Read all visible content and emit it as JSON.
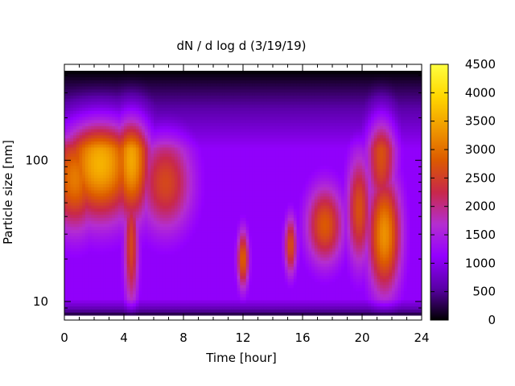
{
  "chart_data": {
    "type": "heatmap",
    "title": "dN / d log d (3/19/19)",
    "xlabel": "Time [hour]",
    "ylabel": "Particle size [nm]",
    "xlim": [
      0,
      24
    ],
    "x_ticks": [
      0,
      4,
      8,
      12,
      16,
      20,
      24
    ],
    "y_scale": "log",
    "ylim": [
      8,
      430
    ],
    "y_ticks": [
      10,
      100
    ],
    "colorbar": {
      "range": [
        0,
        4500
      ],
      "ticks": [
        0,
        500,
        1000,
        1500,
        2000,
        2500,
        3000,
        3500,
        4000,
        4500
      ],
      "palette": [
        "#000000",
        "#5a00a8",
        "#9400ff",
        "#b42ed0",
        "#c8284a",
        "#dc5a00",
        "#f09a00",
        "#ffd700",
        "#ffff40"
      ]
    },
    "features": [
      {
        "time_hour": 2.4,
        "size_nm": 95,
        "value": 3600,
        "time_width_hour": 1.8,
        "size_width_decades": 0.28
      },
      {
        "time_hour": 0.7,
        "size_nm": 75,
        "value": 3100,
        "time_width_hour": 1.2,
        "size_width_decades": 0.26
      },
      {
        "time_hour": 4.5,
        "size_nm": 100,
        "value": 3500,
        "time_width_hour": 0.9,
        "size_width_decades": 0.3
      },
      {
        "time_hour": 4.5,
        "size_nm": 25,
        "value": 2600,
        "time_width_hour": 0.35,
        "size_width_decades": 0.32
      },
      {
        "time_hour": 6.8,
        "size_nm": 70,
        "value": 2600,
        "time_width_hour": 1.3,
        "size_width_decades": 0.25
      },
      {
        "time_hour": 12.0,
        "size_nm": 20,
        "value": 2900,
        "time_width_hour": 0.28,
        "size_width_decades": 0.15
      },
      {
        "time_hour": 15.2,
        "size_nm": 25,
        "value": 2700,
        "time_width_hour": 0.3,
        "size_width_decades": 0.15
      },
      {
        "time_hour": 17.5,
        "size_nm": 35,
        "value": 2800,
        "time_width_hour": 0.9,
        "size_width_decades": 0.2
      },
      {
        "time_hour": 19.8,
        "size_nm": 45,
        "value": 2700,
        "time_width_hour": 0.6,
        "size_width_decades": 0.28
      },
      {
        "time_hour": 21.5,
        "size_nm": 30,
        "value": 3300,
        "time_width_hour": 0.8,
        "size_width_decades": 0.3
      },
      {
        "time_hour": 21.3,
        "size_nm": 110,
        "value": 2700,
        "time_width_hour": 0.7,
        "size_width_decades": 0.3
      }
    ]
  }
}
